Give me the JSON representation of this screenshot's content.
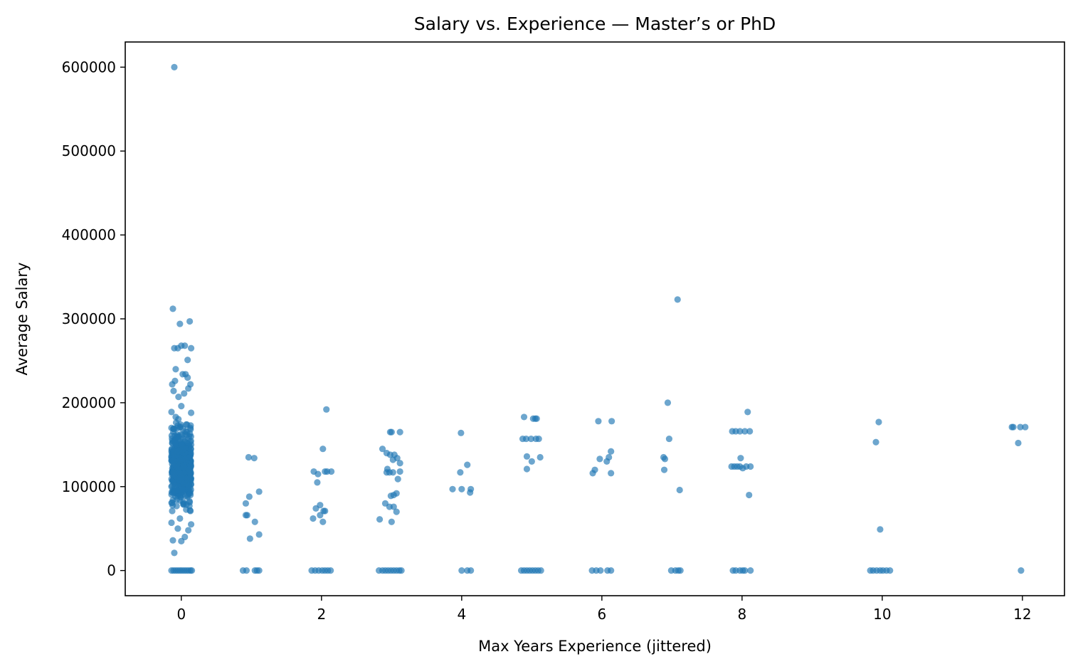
{
  "chart_data": {
    "type": "scatter",
    "title": "Salary vs. Experience — Master’s or PhD",
    "xlabel": "Max Years Experience (jittered)",
    "ylabel": "Average Salary",
    "xlim": [
      -0.8,
      12.6
    ],
    "ylim": [
      -30000,
      630000
    ],
    "xticks": [
      0,
      2,
      4,
      6,
      8,
      10,
      12
    ],
    "yticks": [
      0,
      100000,
      200000,
      300000,
      400000,
      500000,
      600000
    ],
    "grid": false,
    "marker_color": "#1f77b4",
    "marker_alpha": 0.65,
    "points": [
      [
        -0.1,
        600000
      ],
      [
        -0.12,
        312000
      ],
      [
        -0.02,
        294000
      ],
      [
        0.12,
        297000
      ],
      [
        0.09,
        251000
      ],
      [
        -0.1,
        265000
      ],
      [
        -0.05,
        265000
      ],
      [
        0.0,
        268000
      ],
      [
        0.05,
        268000
      ],
      [
        0.14,
        265000
      ],
      [
        -0.08,
        240000
      ],
      [
        0.02,
        234000
      ],
      [
        0.06,
        234000
      ],
      [
        -0.13,
        222000
      ],
      [
        0.13,
        222000
      ],
      [
        -0.11,
        214000
      ],
      [
        0.1,
        217000
      ],
      [
        0.14,
        188000
      ],
      [
        -0.14,
        189000
      ],
      [
        -0.14,
        170000
      ],
      [
        -0.13,
        152000
      ],
      [
        -0.14,
        131000
      ],
      [
        -0.13,
        116000
      ],
      [
        -0.14,
        100000
      ],
      [
        -0.12,
        84000
      ],
      [
        -0.13,
        71000
      ],
      [
        -0.14,
        57000
      ],
      [
        -0.12,
        36000
      ],
      [
        -0.1,
        21000
      ],
      [
        0.0,
        35000
      ],
      [
        0.05,
        40000
      ],
      [
        0.1,
        48000
      ],
      [
        0.14,
        55000
      ],
      [
        0.13,
        71000
      ],
      [
        0.13,
        90000
      ],
      [
        0.14,
        110000
      ],
      [
        0.13,
        130000
      ],
      [
        0.14,
        150000
      ],
      [
        0.13,
        170000
      ],
      [
        -0.05,
        50000
      ],
      [
        -0.02,
        62000
      ],
      [
        0.03,
        79000
      ],
      [
        -0.06,
        96000
      ],
      [
        0.06,
        112000
      ],
      [
        -0.03,
        128000
      ],
      [
        0.01,
        144000
      ],
      [
        -0.07,
        158000
      ],
      [
        0.07,
        174000
      ],
      [
        0.0,
        196000
      ],
      [
        -0.04,
        207000
      ],
      [
        0.04,
        211000
      ],
      [
        -0.09,
        226000
      ],
      [
        0.09,
        230000
      ],
      [
        -0.01,
        88000
      ],
      [
        0.02,
        102000
      ],
      [
        -0.1,
        118000
      ],
      [
        0.1,
        134000
      ],
      [
        -0.02,
        146000
      ],
      [
        0.08,
        162000
      ],
      [
        -0.08,
        183000
      ],
      [
        -0.14,
        0
      ],
      [
        -0.11,
        0
      ],
      [
        -0.08,
        0
      ],
      [
        -0.05,
        0
      ],
      [
        -0.02,
        0
      ],
      [
        0.01,
        0
      ],
      [
        0.04,
        0
      ],
      [
        0.07,
        0
      ],
      [
        0.1,
        0
      ],
      [
        0.13,
        0
      ],
      [
        0.15,
        0
      ],
      [
        0.96,
        135000
      ],
      [
        1.04,
        134000
      ],
      [
        0.97,
        88000
      ],
      [
        0.92,
        80000
      ],
      [
        0.92,
        66000
      ],
      [
        0.94,
        66000
      ],
      [
        1.11,
        94000
      ],
      [
        1.05,
        58000
      ],
      [
        0.98,
        38000
      ],
      [
        1.11,
        43000
      ],
      [
        0.88,
        0
      ],
      [
        0.93,
        0
      ],
      [
        1.05,
        0
      ],
      [
        1.08,
        0
      ],
      [
        1.11,
        0
      ],
      [
        2.07,
        192000
      ],
      [
        2.02,
        145000
      ],
      [
        1.89,
        118000
      ],
      [
        1.95,
        115000
      ],
      [
        2.05,
        118000
      ],
      [
        2.08,
        118000
      ],
      [
        2.14,
        118000
      ],
      [
        1.94,
        105000
      ],
      [
        1.98,
        78000
      ],
      [
        1.92,
        74000
      ],
      [
        2.03,
        71000
      ],
      [
        2.05,
        71000
      ],
      [
        1.88,
        62000
      ],
      [
        1.98,
        66000
      ],
      [
        2.02,
        58000
      ],
      [
        1.86,
        0
      ],
      [
        1.91,
        0
      ],
      [
        1.96,
        0
      ],
      [
        2.01,
        0
      ],
      [
        2.05,
        0
      ],
      [
        2.09,
        0
      ],
      [
        2.13,
        0
      ],
      [
        2.98,
        165000
      ],
      [
        3.0,
        165000
      ],
      [
        3.12,
        165000
      ],
      [
        2.87,
        145000
      ],
      [
        2.93,
        140000
      ],
      [
        2.98,
        138000
      ],
      [
        3.04,
        138000
      ],
      [
        3.08,
        134000
      ],
      [
        3.12,
        128000
      ],
      [
        3.12,
        118000
      ],
      [
        2.94,
        121000
      ],
      [
        2.93,
        117000
      ],
      [
        2.97,
        117000
      ],
      [
        3.02,
        117000
      ],
      [
        3.02,
        132000
      ],
      [
        3.09,
        109000
      ],
      [
        2.99,
        89000
      ],
      [
        3.03,
        90000
      ],
      [
        3.07,
        92000
      ],
      [
        2.91,
        80000
      ],
      [
        2.97,
        76000
      ],
      [
        3.03,
        76000
      ],
      [
        3.07,
        70000
      ],
      [
        2.83,
        61000
      ],
      [
        3.0,
        58000
      ],
      [
        2.82,
        0
      ],
      [
        2.87,
        0
      ],
      [
        2.91,
        0
      ],
      [
        2.95,
        0
      ],
      [
        2.99,
        0
      ],
      [
        3.03,
        0
      ],
      [
        3.07,
        0
      ],
      [
        3.11,
        0
      ],
      [
        3.14,
        0
      ],
      [
        3.99,
        164000
      ],
      [
        4.08,
        126000
      ],
      [
        3.98,
        117000
      ],
      [
        3.87,
        97000
      ],
      [
        4.0,
        97000
      ],
      [
        4.13,
        97000
      ],
      [
        4.12,
        93000
      ],
      [
        4.0,
        0
      ],
      [
        4.08,
        0
      ],
      [
        4.13,
        0
      ],
      [
        4.89,
        183000
      ],
      [
        5.02,
        181000
      ],
      [
        5.05,
        181000
      ],
      [
        5.07,
        181000
      ],
      [
        4.87,
        157000
      ],
      [
        4.92,
        157000
      ],
      [
        4.99,
        157000
      ],
      [
        5.06,
        157000
      ],
      [
        5.1,
        157000
      ],
      [
        4.93,
        136000
      ],
      [
        5.12,
        135000
      ],
      [
        5.0,
        130000
      ],
      [
        4.93,
        121000
      ],
      [
        4.85,
        0
      ],
      [
        4.89,
        0
      ],
      [
        4.93,
        0
      ],
      [
        4.97,
        0
      ],
      [
        5.01,
        0
      ],
      [
        5.05,
        0
      ],
      [
        5.09,
        0
      ],
      [
        5.13,
        0
      ],
      [
        5.95,
        178000
      ],
      [
        6.14,
        178000
      ],
      [
        6.13,
        142000
      ],
      [
        5.97,
        133000
      ],
      [
        6.1,
        135000
      ],
      [
        6.07,
        130000
      ],
      [
        5.9,
        120000
      ],
      [
        5.87,
        116000
      ],
      [
        6.13,
        116000
      ],
      [
        5.86,
        0
      ],
      [
        5.92,
        0
      ],
      [
        5.98,
        0
      ],
      [
        6.08,
        0
      ],
      [
        6.13,
        0
      ],
      [
        7.08,
        323000
      ],
      [
        6.94,
        200000
      ],
      [
        6.96,
        157000
      ],
      [
        6.88,
        135000
      ],
      [
        6.9,
        133000
      ],
      [
        6.89,
        120000
      ],
      [
        7.11,
        96000
      ],
      [
        6.99,
        0
      ],
      [
        7.05,
        0
      ],
      [
        7.09,
        0
      ],
      [
        7.12,
        0
      ],
      [
        8.08,
        189000
      ],
      [
        7.86,
        166000
      ],
      [
        7.91,
        166000
      ],
      [
        7.97,
        166000
      ],
      [
        8.04,
        166000
      ],
      [
        8.11,
        166000
      ],
      [
        7.98,
        134000
      ],
      [
        7.85,
        124000
      ],
      [
        7.89,
        124000
      ],
      [
        7.93,
        124000
      ],
      [
        7.97,
        124000
      ],
      [
        8.01,
        122000
      ],
      [
        8.06,
        124000
      ],
      [
        8.12,
        124000
      ],
      [
        8.1,
        90000
      ],
      [
        7.87,
        0
      ],
      [
        7.91,
        0
      ],
      [
        7.97,
        0
      ],
      [
        8.01,
        0
      ],
      [
        8.04,
        0
      ],
      [
        8.12,
        0
      ],
      [
        9.95,
        177000
      ],
      [
        9.91,
        153000
      ],
      [
        9.97,
        49000
      ],
      [
        9.83,
        0
      ],
      [
        9.87,
        0
      ],
      [
        9.92,
        0
      ],
      [
        9.97,
        0
      ],
      [
        10.01,
        0
      ],
      [
        10.06,
        0
      ],
      [
        10.11,
        0
      ],
      [
        11.85,
        171000
      ],
      [
        11.87,
        171000
      ],
      [
        11.97,
        171000
      ],
      [
        12.04,
        171000
      ],
      [
        11.94,
        152000
      ],
      [
        11.98,
        0
      ]
    ],
    "dense_cluster": {
      "x_range": [
        -0.14,
        0.14
      ],
      "y_range": [
        45000,
        205000
      ],
      "count": 520
    }
  }
}
